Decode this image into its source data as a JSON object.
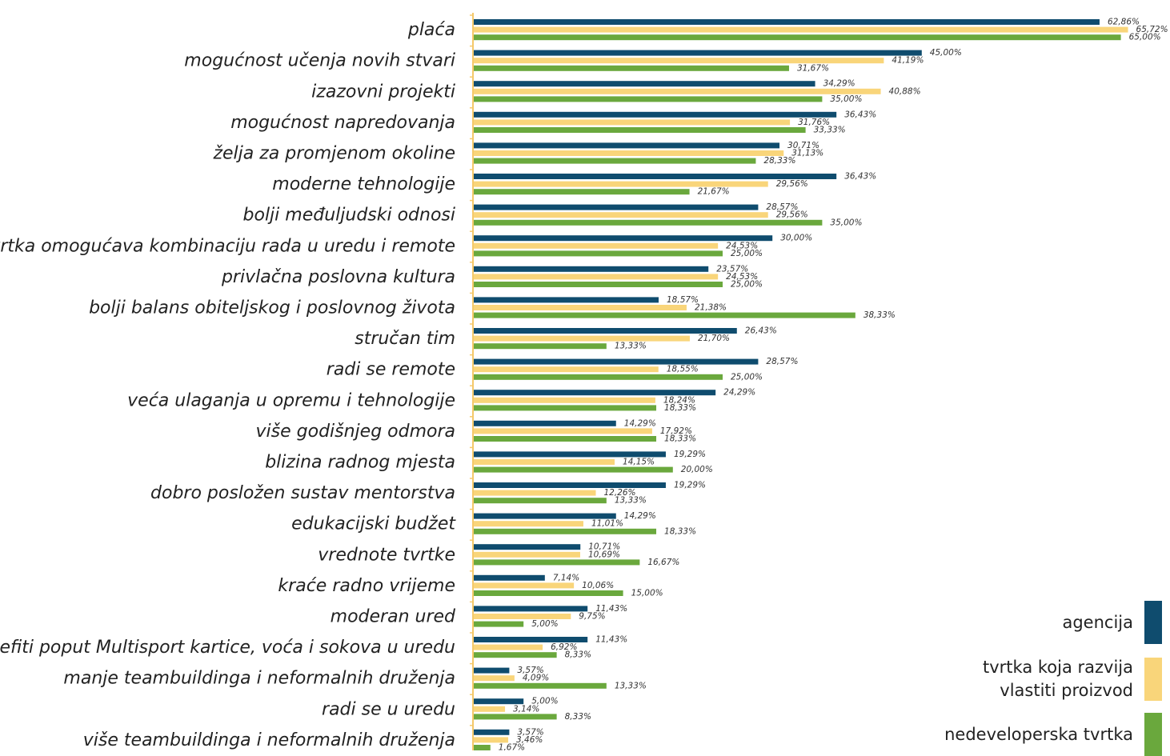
{
  "chart_data": {
    "type": "bar",
    "orientation": "horizontal",
    "categories": [
      "plaća",
      "mogućnost učenja novih stvari",
      "izazovni projekti",
      "mogućnost napredovanja",
      "želja za promjenom okoline",
      "moderne tehnologije",
      "bolji međuljudski odnosi",
      "tvrtka omogućava kombinaciju rada u uredu i remote",
      "privlačna poslovna kultura",
      "bolji balans obiteljskog i poslovnog života",
      "stručan tim",
      "radi se remote",
      "veća ulaganja u opremu i tehnologije",
      "više godišnjeg odmora",
      "blizina radnog mjesta",
      "dobro posložen sustav mentorstva",
      "edukacijski budžet",
      "vrednote tvrtke",
      "kraće radno vrijeme",
      "moderan ured",
      "benefiti poput Multisport kartice, voća i sokova u uredu",
      "manje teambuildinga i neformalnih druženja",
      "radi se u uredu",
      "više teambuildinga i neformalnih druženja"
    ],
    "series": [
      {
        "name": "agencija",
        "color": "#0f4c6e",
        "values": [
          62.86,
          45.0,
          34.29,
          36.43,
          30.71,
          36.43,
          28.57,
          30.0,
          23.57,
          18.57,
          26.43,
          28.57,
          24.29,
          14.29,
          19.29,
          19.29,
          14.29,
          10.71,
          7.14,
          11.43,
          11.43,
          3.57,
          5.0,
          3.57
        ],
        "labels": [
          "62,86%",
          "45,00%",
          "34,29%",
          "36,43%",
          "30,71%",
          "36,43%",
          "28,57%",
          "30,00%",
          "23,57%",
          "18,57%",
          "26,43%",
          "28,57%",
          "24,29%",
          "14,29%",
          "19,29%",
          "19,29%",
          "14,29%",
          "10,71%",
          "7,14%",
          "11,43%",
          "11,43%",
          "3,57%",
          "5,00%",
          "3,57%"
        ]
      },
      {
        "name": "tvrtka koja razvija vlastiti proizvod",
        "color": "#f9d57a",
        "values": [
          65.72,
          41.19,
          40.88,
          31.76,
          31.13,
          29.56,
          29.56,
          24.53,
          24.53,
          21.38,
          21.7,
          18.55,
          18.24,
          17.92,
          14.15,
          12.26,
          11.01,
          10.69,
          10.06,
          9.75,
          6.92,
          4.09,
          3.14,
          3.46
        ],
        "labels": [
          "65,72%",
          "41,19%",
          "40,88%",
          "31,76%",
          "31,13%",
          "29,56%",
          "29,56%",
          "24,53%",
          "24,53%",
          "21,38%",
          "21,70%",
          "18,55%",
          "18,24%",
          "17,92%",
          "14,15%",
          "12,26%",
          "11,01%",
          "10,69%",
          "10,06%",
          "9,75%",
          "6,92%",
          "4,09%",
          "3,14%",
          "3,46%"
        ]
      },
      {
        "name": "nedeveloperska tvrtka",
        "color": "#6aa83d",
        "values": [
          65.0,
          31.67,
          35.0,
          33.33,
          28.33,
          21.67,
          35.0,
          25.0,
          25.0,
          38.33,
          13.33,
          25.0,
          18.33,
          18.33,
          20.0,
          13.33,
          18.33,
          16.67,
          15.0,
          5.0,
          8.33,
          13.33,
          8.33,
          1.67
        ],
        "labels": [
          "65,00%",
          "31,67%",
          "35,00%",
          "33,33%",
          "28,33%",
          "21,67%",
          "35,00%",
          "25,00%",
          "25,00%",
          "38,33%",
          "13,33%",
          "25,00%",
          "18,33%",
          "18,33%",
          "20,00%",
          "13,33%",
          "18,33%",
          "16,67%",
          "15,00%",
          "5,00%",
          "8,33%",
          "13,33%",
          "8,33%",
          "1,67%"
        ]
      }
    ],
    "legend": [
      {
        "lines": [
          "agencija"
        ],
        "color": "#0f4c6e"
      },
      {
        "lines": [
          "tvrtka koja razvija",
          "vlastiti proizvod"
        ],
        "color": "#f9d57a"
      },
      {
        "lines": [
          "nedeveloperska tvrtka"
        ],
        "color": "#6aa83d"
      }
    ],
    "legend_position": "bottom-right",
    "axis_color": "#f5c96a",
    "grid": false,
    "xlim": [
      0,
      70
    ]
  }
}
